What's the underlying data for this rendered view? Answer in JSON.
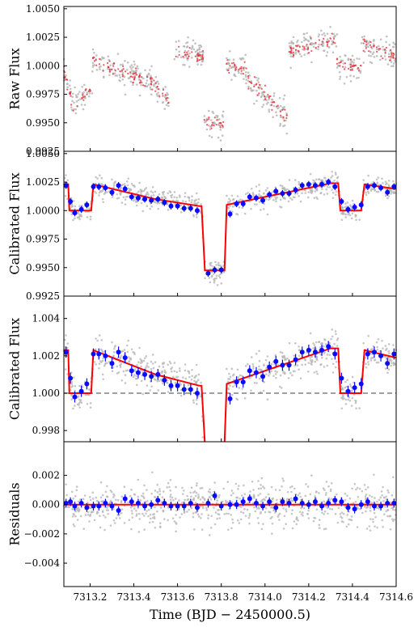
{
  "figure": {
    "xlabel": "Time (BJD − 2450000.5)",
    "x_ticks": [
      7313.2,
      7313.4,
      7313.6,
      7313.8,
      7314.0,
      7314.2,
      7314.4,
      7314.6
    ],
    "x_tick_labels": [
      "7313.2",
      "7313.4",
      "7313.6",
      "7313.8",
      "7314.0",
      "7314.2",
      "7314.4",
      "7314.6"
    ],
    "xlim": [
      7313.08,
      7314.6
    ]
  },
  "colors": {
    "raw_points": "#b4b4b4",
    "binned_raw": "#e8222b",
    "binned": "#0a0aff",
    "model": "#ff0000",
    "reference_line": "#808080"
  },
  "chart_data": [
    {
      "type": "scatter",
      "panel": "raw",
      "ylabel": "Raw Flux",
      "ylim": [
        0.9925,
        1.0052
      ],
      "yticks": [
        0.9925,
        0.995,
        0.9975,
        1.0,
        1.0025,
        1.005
      ],
      "ytick_labels": [
        "0.9925",
        "0.9950",
        "0.9975",
        "1.0000",
        "1.0025",
        "1.0050"
      ],
      "series": [
        {
          "style": "grey-dots",
          "segments": [
            {
              "x0": 7313.08,
              "x1": 7313.21,
              "levels": [
                0.9995,
                0.9965,
                0.9972,
                0.998
              ]
            },
            {
              "x0": 7313.21,
              "x1": 7313.49,
              "levels": [
                1.0005,
                0.9998,
                0.9992,
                0.9985
              ]
            },
            {
              "x0": 7313.49,
              "x1": 7313.56,
              "levels": [
                0.9985,
                0.9968
              ]
            },
            {
              "x0": 7313.58,
              "x1": 7313.72,
              "levels": [
                1.0012,
                1.0008
              ]
            },
            {
              "x0": 7313.72,
              "x1": 7313.81,
              "levels": [
                0.9952,
                0.9948
              ]
            },
            {
              "x0": 7313.82,
              "x1": 7313.92,
              "levels": [
                1.0002,
                0.9995
              ]
            },
            {
              "x0": 7313.92,
              "x1": 7314.0,
              "levels": [
                0.9988,
                0.9975
              ]
            },
            {
              "x0": 7314.0,
              "x1": 7314.1,
              "levels": [
                0.9975,
                0.9955
              ]
            },
            {
              "x0": 7314.11,
              "x1": 7314.33,
              "levels": [
                1.0012,
                1.0025
              ]
            },
            {
              "x0": 7314.33,
              "x1": 7314.44,
              "levels": [
                1.0002,
                0.9998
              ]
            },
            {
              "x0": 7314.44,
              "x1": 7314.6,
              "levels": [
                1.002,
                1.0008
              ]
            }
          ]
        },
        {
          "style": "red-dots",
          "follows": "grey-dots"
        }
      ]
    },
    {
      "type": "scatter",
      "panel": "calibrated",
      "ylabel": "Calibrated Flux",
      "ylim": [
        0.9925,
        1.0052
      ],
      "yticks": [
        0.9925,
        0.995,
        0.9975,
        1.0,
        1.0025,
        1.005
      ],
      "ytick_labels": [
        "0.9925",
        "0.9950",
        "0.9975",
        "1.0000",
        "1.0025",
        "1.0050"
      ],
      "model": {
        "x": [
          7313.08,
          7313.1,
          7313.105,
          7313.17,
          7313.205,
          7313.215,
          7313.5,
          7313.7,
          7313.71,
          7313.725,
          7313.8,
          7313.815,
          7313.825,
          7314.0,
          7314.3,
          7314.335,
          7314.345,
          7314.44,
          7314.455,
          7314.6
        ],
        "y": [
          1.0023,
          1.0023,
          1.0,
          1.0,
          1.0,
          1.0023,
          1.001,
          1.0004,
          1.0004,
          0.99475,
          0.99475,
          0.99475,
          1.0005,
          1.0012,
          1.0024,
          1.0024,
          1.0,
          1.0,
          1.0023,
          1.0019
        ]
      },
      "binned": {
        "x": [
          7313.09,
          7313.11,
          7313.13,
          7313.16,
          7313.185,
          7313.215,
          7313.24,
          7313.27,
          7313.3,
          7313.33,
          7313.36,
          7313.39,
          7313.42,
          7313.45,
          7313.48,
          7313.51,
          7313.54,
          7313.57,
          7313.6,
          7313.63,
          7313.66,
          7313.69,
          7313.74,
          7313.77,
          7313.8,
          7313.84,
          7313.87,
          7313.9,
          7313.93,
          7313.96,
          7313.99,
          7314.02,
          7314.05,
          7314.08,
          7314.11,
          7314.14,
          7314.17,
          7314.2,
          7314.23,
          7314.26,
          7314.29,
          7314.32,
          7314.35,
          7314.38,
          7314.41,
          7314.44,
          7314.47,
          7314.5,
          7314.53,
          7314.56,
          7314.59
        ],
        "y": [
          1.0022,
          1.0008,
          0.9998,
          1.0001,
          1.0005,
          1.0021,
          1.0021,
          1.002,
          1.0016,
          1.0022,
          1.0019,
          1.0012,
          1.0011,
          1.001,
          1.0009,
          1.001,
          1.0007,
          1.0004,
          1.0004,
          1.0002,
          1.0002,
          1.0,
          0.9945,
          0.9948,
          0.9948,
          0.9997,
          1.0006,
          1.0006,
          1.0012,
          1.0011,
          1.0009,
          1.0014,
          1.0017,
          1.0015,
          1.0015,
          1.0018,
          1.0022,
          1.0023,
          1.0022,
          1.0023,
          1.0025,
          1.0021,
          1.0008,
          1.0001,
          1.0003,
          1.0005,
          1.0021,
          1.0022,
          1.002,
          1.0016,
          1.0021
        ],
        "err": 0.0003
      }
    },
    {
      "type": "scatter",
      "panel": "calibrated-zoom",
      "ylabel": "Calibrated Flux",
      "ylim": [
        0.9974,
        1.0052
      ],
      "yticks": [
        0.998,
        1.0,
        1.002,
        1.004
      ],
      "ytick_labels": [
        "0.998",
        "1.000",
        "1.002",
        "1.004"
      ],
      "reference_line": 1.0
    },
    {
      "type": "scatter",
      "panel": "residuals",
      "ylabel": "Residuals",
      "ylim": [
        -0.0056,
        0.0043
      ],
      "yticks": [
        -0.004,
        -0.002,
        0.0,
        0.002
      ],
      "ytick_labels": [
        "−0.004",
        "−0.002",
        "0.000",
        "0.002"
      ],
      "reference_line": 0.0,
      "binned_residuals": [
        0.0001,
        0.0002,
        -0.0001,
        0.0001,
        -0.0002,
        -0.0001,
        -0.0001,
        0.0001,
        -0.0001,
        -0.0004,
        0.0004,
        0.0002,
        0.0001,
        -0.0001,
        0.0,
        0.0003,
        0.0001,
        -0.0001,
        -0.0001,
        -0.0001,
        0.0001,
        -0.0002,
        0.0001,
        0.0006,
        -0.0001,
        0.0,
        0.0,
        0.0002,
        0.0004,
        0.0001,
        -0.0001,
        0.0002,
        -0.0002,
        0.0002,
        0.0001,
        0.0004,
        0.0001,
        0.0,
        0.0002,
        -0.0001,
        0.0001,
        0.0003,
        0.0002,
        -0.0002,
        -0.0003,
        0.0,
        0.0002,
        -0.0001,
        -0.0001,
        0.0001,
        0.0001
      ]
    }
  ]
}
